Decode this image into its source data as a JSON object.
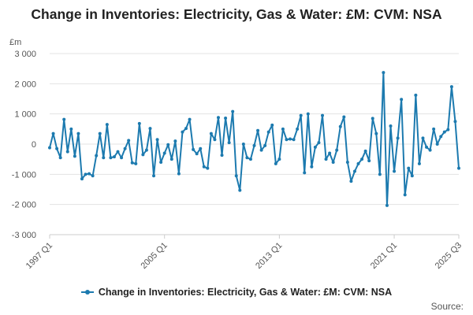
{
  "chart_data": {
    "type": "line",
    "title": "Change in Inventories: Electricity, Gas & Water: £M: CVM: NSA",
    "unit_label": "£m",
    "ylim": [
      -3000,
      3000
    ],
    "y_ticks": [
      "3 000",
      "2 000",
      "1 000",
      "0",
      "-1 000",
      "-2 000",
      "-3 000"
    ],
    "y_tick_values": [
      3000,
      2000,
      1000,
      0,
      -1000,
      -2000,
      -3000
    ],
    "x_ticks": [
      "1997 Q1",
      "2005 Q1",
      "2013 Q1",
      "2021 Q1",
      "2025 Q3"
    ],
    "x_tick_indices": [
      0,
      32,
      64,
      96,
      114
    ],
    "grid": "horizontal",
    "legend_position": "bottom",
    "source_label": "Source:",
    "series": [
      {
        "name": "Change in Inventories: Electricity, Gas & Water: £M: CVM: NSA",
        "color": "#1c7aaf",
        "values": [
          -120,
          350,
          -150,
          -450,
          820,
          -250,
          500,
          -400,
          350,
          -1150,
          -1000,
          -980,
          -1050,
          -380,
          350,
          -450,
          650,
          -450,
          -420,
          -250,
          -450,
          -150,
          120,
          -620,
          -650,
          680,
          -350,
          -200,
          520,
          -1050,
          150,
          -600,
          -300,
          -20,
          -500,
          100,
          -980,
          400,
          520,
          820,
          -180,
          -320,
          -150,
          -750,
          -800,
          350,
          150,
          880,
          -370,
          860,
          50,
          1080,
          -1050,
          -1530,
          0,
          -450,
          -500,
          -50,
          450,
          -200,
          -50,
          400,
          630,
          -650,
          -500,
          500,
          150,
          170,
          150,
          500,
          950,
          -950,
          1000,
          -750,
          -100,
          50,
          950,
          -500,
          -300,
          -600,
          -200,
          580,
          900,
          -600,
          -1230,
          -900,
          -650,
          -500,
          -230,
          -550,
          850,
          350,
          -1000,
          2370,
          -2030,
          600,
          -900,
          200,
          1480,
          -1680,
          -800,
          -1050,
          1620,
          -650,
          200,
          -100,
          -200,
          500,
          0,
          250,
          400,
          480,
          1900,
          750,
          -800
        ]
      }
    ]
  }
}
